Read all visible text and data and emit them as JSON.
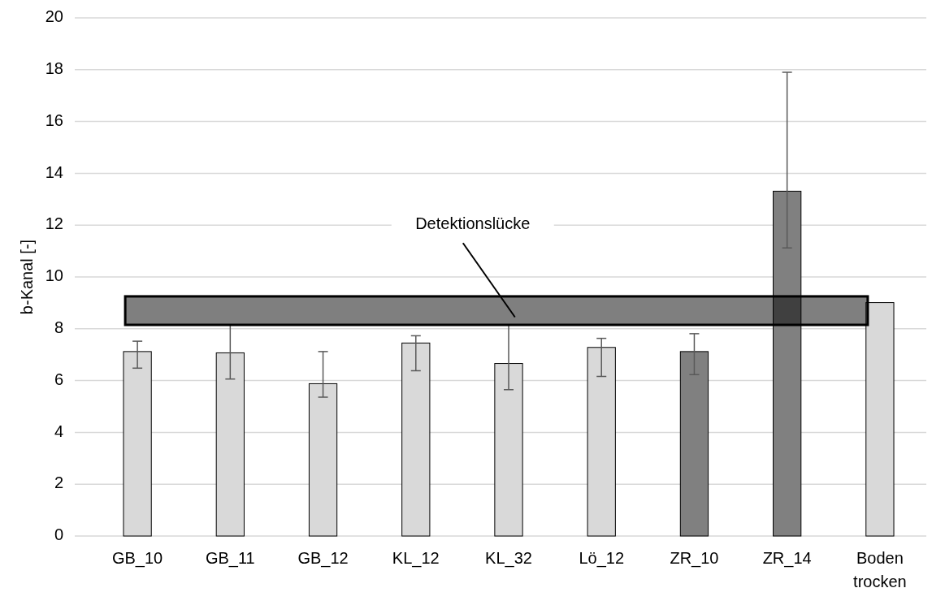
{
  "chart_data": {
    "type": "bar",
    "ylabel": "b-Kanal [-]",
    "categories": [
      "GB_10",
      "GB_11",
      "GB_12",
      "KL_12",
      "KL_32",
      "Lö_12",
      "ZR_10",
      "ZR_14",
      "Boden trocken"
    ],
    "values": [
      7.12,
      7.07,
      5.88,
      7.45,
      6.66,
      7.28,
      7.12,
      13.31,
      9.01
    ],
    "colors": [
      "#d9d9d9",
      "#d9d9d9",
      "#d9d9d9",
      "#d9d9d9",
      "#d9d9d9",
      "#d9d9d9",
      "#808080",
      "#808080",
      "#d9d9d9"
    ],
    "errors": [
      [
        6.48,
        7.52
      ],
      [
        6.06,
        8.15
      ],
      [
        5.36,
        7.12
      ],
      [
        6.38,
        7.73
      ],
      [
        5.65,
        8.15
      ],
      [
        6.16,
        7.63
      ],
      [
        6.23,
        7.81
      ],
      [
        11.12,
        17.9
      ],
      null
    ],
    "ylim": [
      0,
      20
    ],
    "yticks": [
      0,
      2,
      4,
      6,
      8,
      10,
      12,
      14,
      16,
      18,
      20
    ],
    "grid": "y",
    "bands": [
      {
        "axis": "y",
        "from": 8.15,
        "to": 9.25,
        "label": "Detektionslücke",
        "color": "#000000"
      }
    ]
  }
}
